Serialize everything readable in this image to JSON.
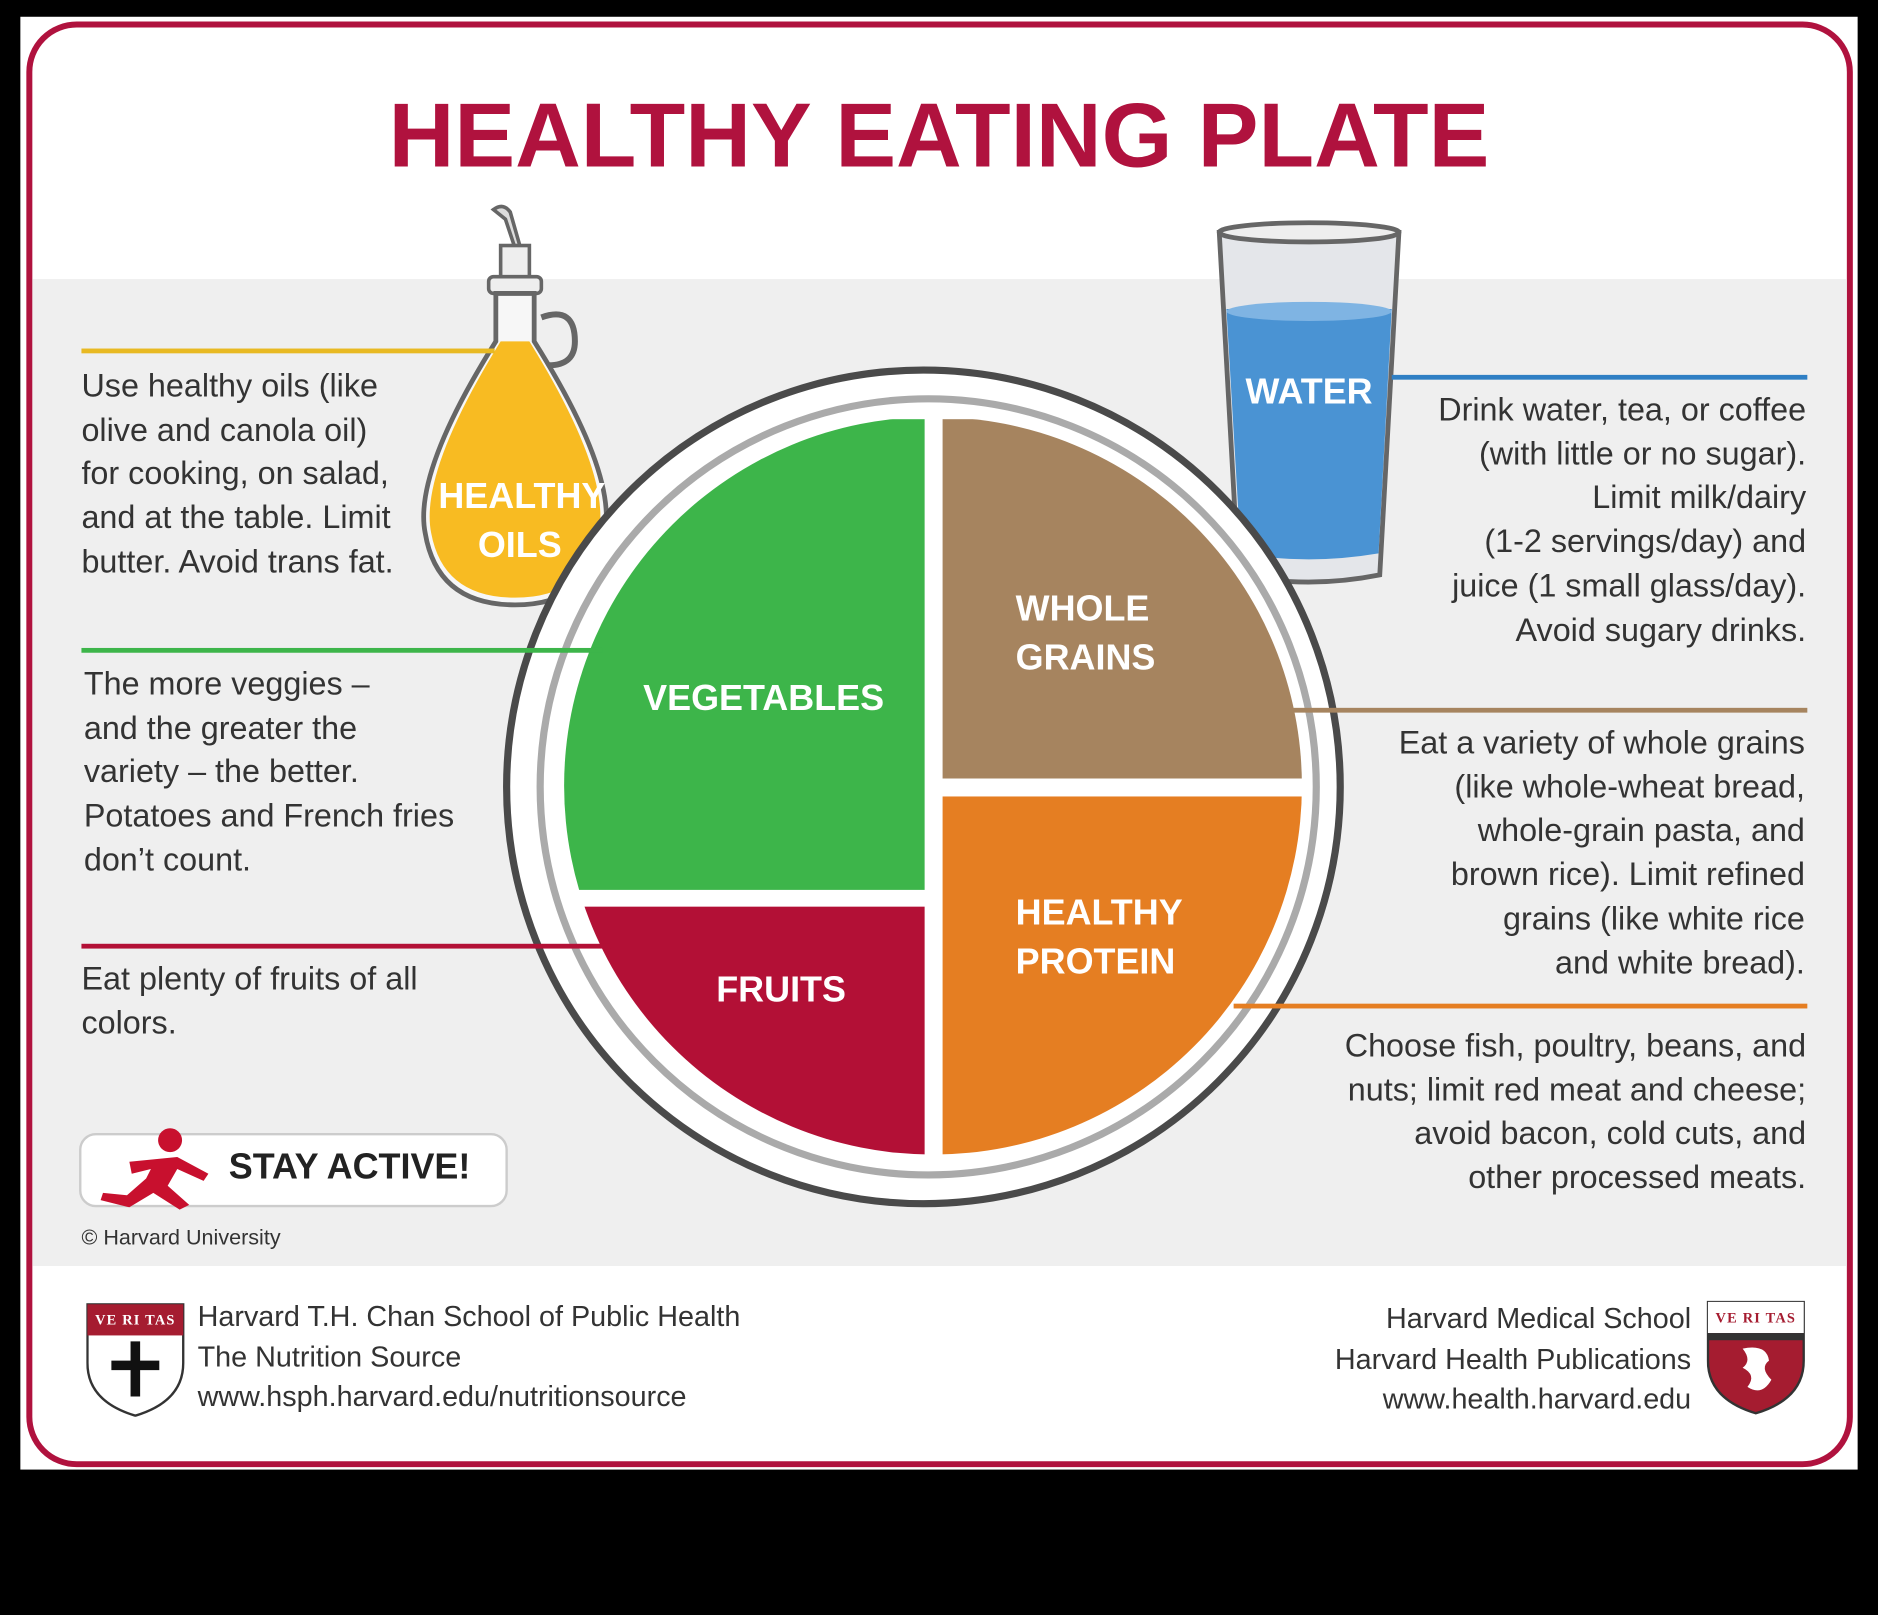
{
  "title": "HEALTHY EATING PLATE",
  "colors": {
    "brand": "#b0123e",
    "vegetables": "#3db54a",
    "whole_grains": "#a6845f",
    "protein": "#e57e22",
    "fruits": "#b31036",
    "water": "#4a93d3",
    "oils": "#f8bb22"
  },
  "oils": {
    "label_lines": [
      "HEALTHY",
      "OILS"
    ],
    "text": [
      "Use healthy oils (like",
      "olive and canola oil)",
      "for cooking, on salad,",
      "and at the table. Limit",
      "butter. Avoid trans fat."
    ]
  },
  "vegetables": {
    "label": "VEGETABLES",
    "text": [
      "The more veggies –",
      "and the greater the",
      "variety – the better.",
      "Potatoes and French fries",
      "don’t count."
    ]
  },
  "fruits": {
    "label": "FRUITS",
    "text": [
      "Eat plenty of fruits of all",
      "colors."
    ]
  },
  "water": {
    "label": "WATER",
    "text": [
      "Drink water, tea, or coffee",
      "(with little or no sugar).",
      "Limit milk/dairy",
      "(1-2 servings/day) and",
      "juice (1 small glass/day).",
      "Avoid sugary drinks."
    ]
  },
  "whole_grains": {
    "label_lines": [
      "WHOLE",
      "GRAINS"
    ],
    "text": [
      "Eat a variety of whole grains",
      "(like whole-wheat bread,",
      "whole-grain pasta, and",
      "brown rice). Limit refined",
      "grains (like white rice",
      "and white bread)."
    ]
  },
  "protein": {
    "label_lines": [
      "HEALTHY",
      "PROTEIN"
    ],
    "text": [
      "Choose fish, poultry, beans, and",
      "nuts;  limit red meat and cheese;",
      "avoid bacon, cold cuts,  and",
      "other processed meats."
    ]
  },
  "stay_active": "STAY ACTIVE!",
  "copyright": "© Harvard University",
  "footer_left": [
    "Harvard T.H. Chan School of Public Health",
    "The Nutrition Source",
    "www.hsph.harvard.edu/nutritionsource"
  ],
  "footer_right": [
    "Harvard Medical School",
    "Harvard Health Publications",
    "www.health.harvard.edu"
  ],
  "shield_text": "VE RI TAS"
}
